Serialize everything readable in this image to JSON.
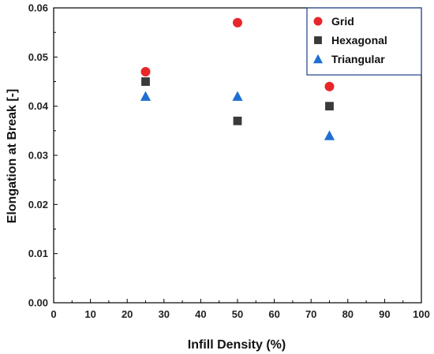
{
  "chart_data": {
    "type": "scatter",
    "title": "",
    "xlabel": "Infill Density (%)",
    "ylabel": "Elongation at Break [-]",
    "xlim": [
      0,
      100
    ],
    "ylim": [
      0,
      0.06
    ],
    "xticks": [
      "0",
      "10",
      "20",
      "30",
      "40",
      "50",
      "60",
      "70",
      "80",
      "90",
      "100"
    ],
    "yticks": [
      "0.00",
      "0.01",
      "0.02",
      "0.03",
      "0.04",
      "0.05",
      "0.06"
    ],
    "grid": false,
    "legend_position": "top-right",
    "series": [
      {
        "name": "Grid",
        "marker": "circle",
        "color": "#e8262a",
        "x": [
          25,
          50,
          75
        ],
        "y": [
          0.047,
          0.057,
          0.044
        ]
      },
      {
        "name": "Hexagonal",
        "marker": "square",
        "color": "#3a3a3a",
        "x": [
          25,
          50,
          75
        ],
        "y": [
          0.045,
          0.037,
          0.04
        ]
      },
      {
        "name": "Triangular",
        "marker": "triangle",
        "color": "#1f6fd1",
        "x": [
          25,
          50,
          75
        ],
        "y": [
          0.042,
          0.042,
          0.034
        ]
      }
    ]
  }
}
